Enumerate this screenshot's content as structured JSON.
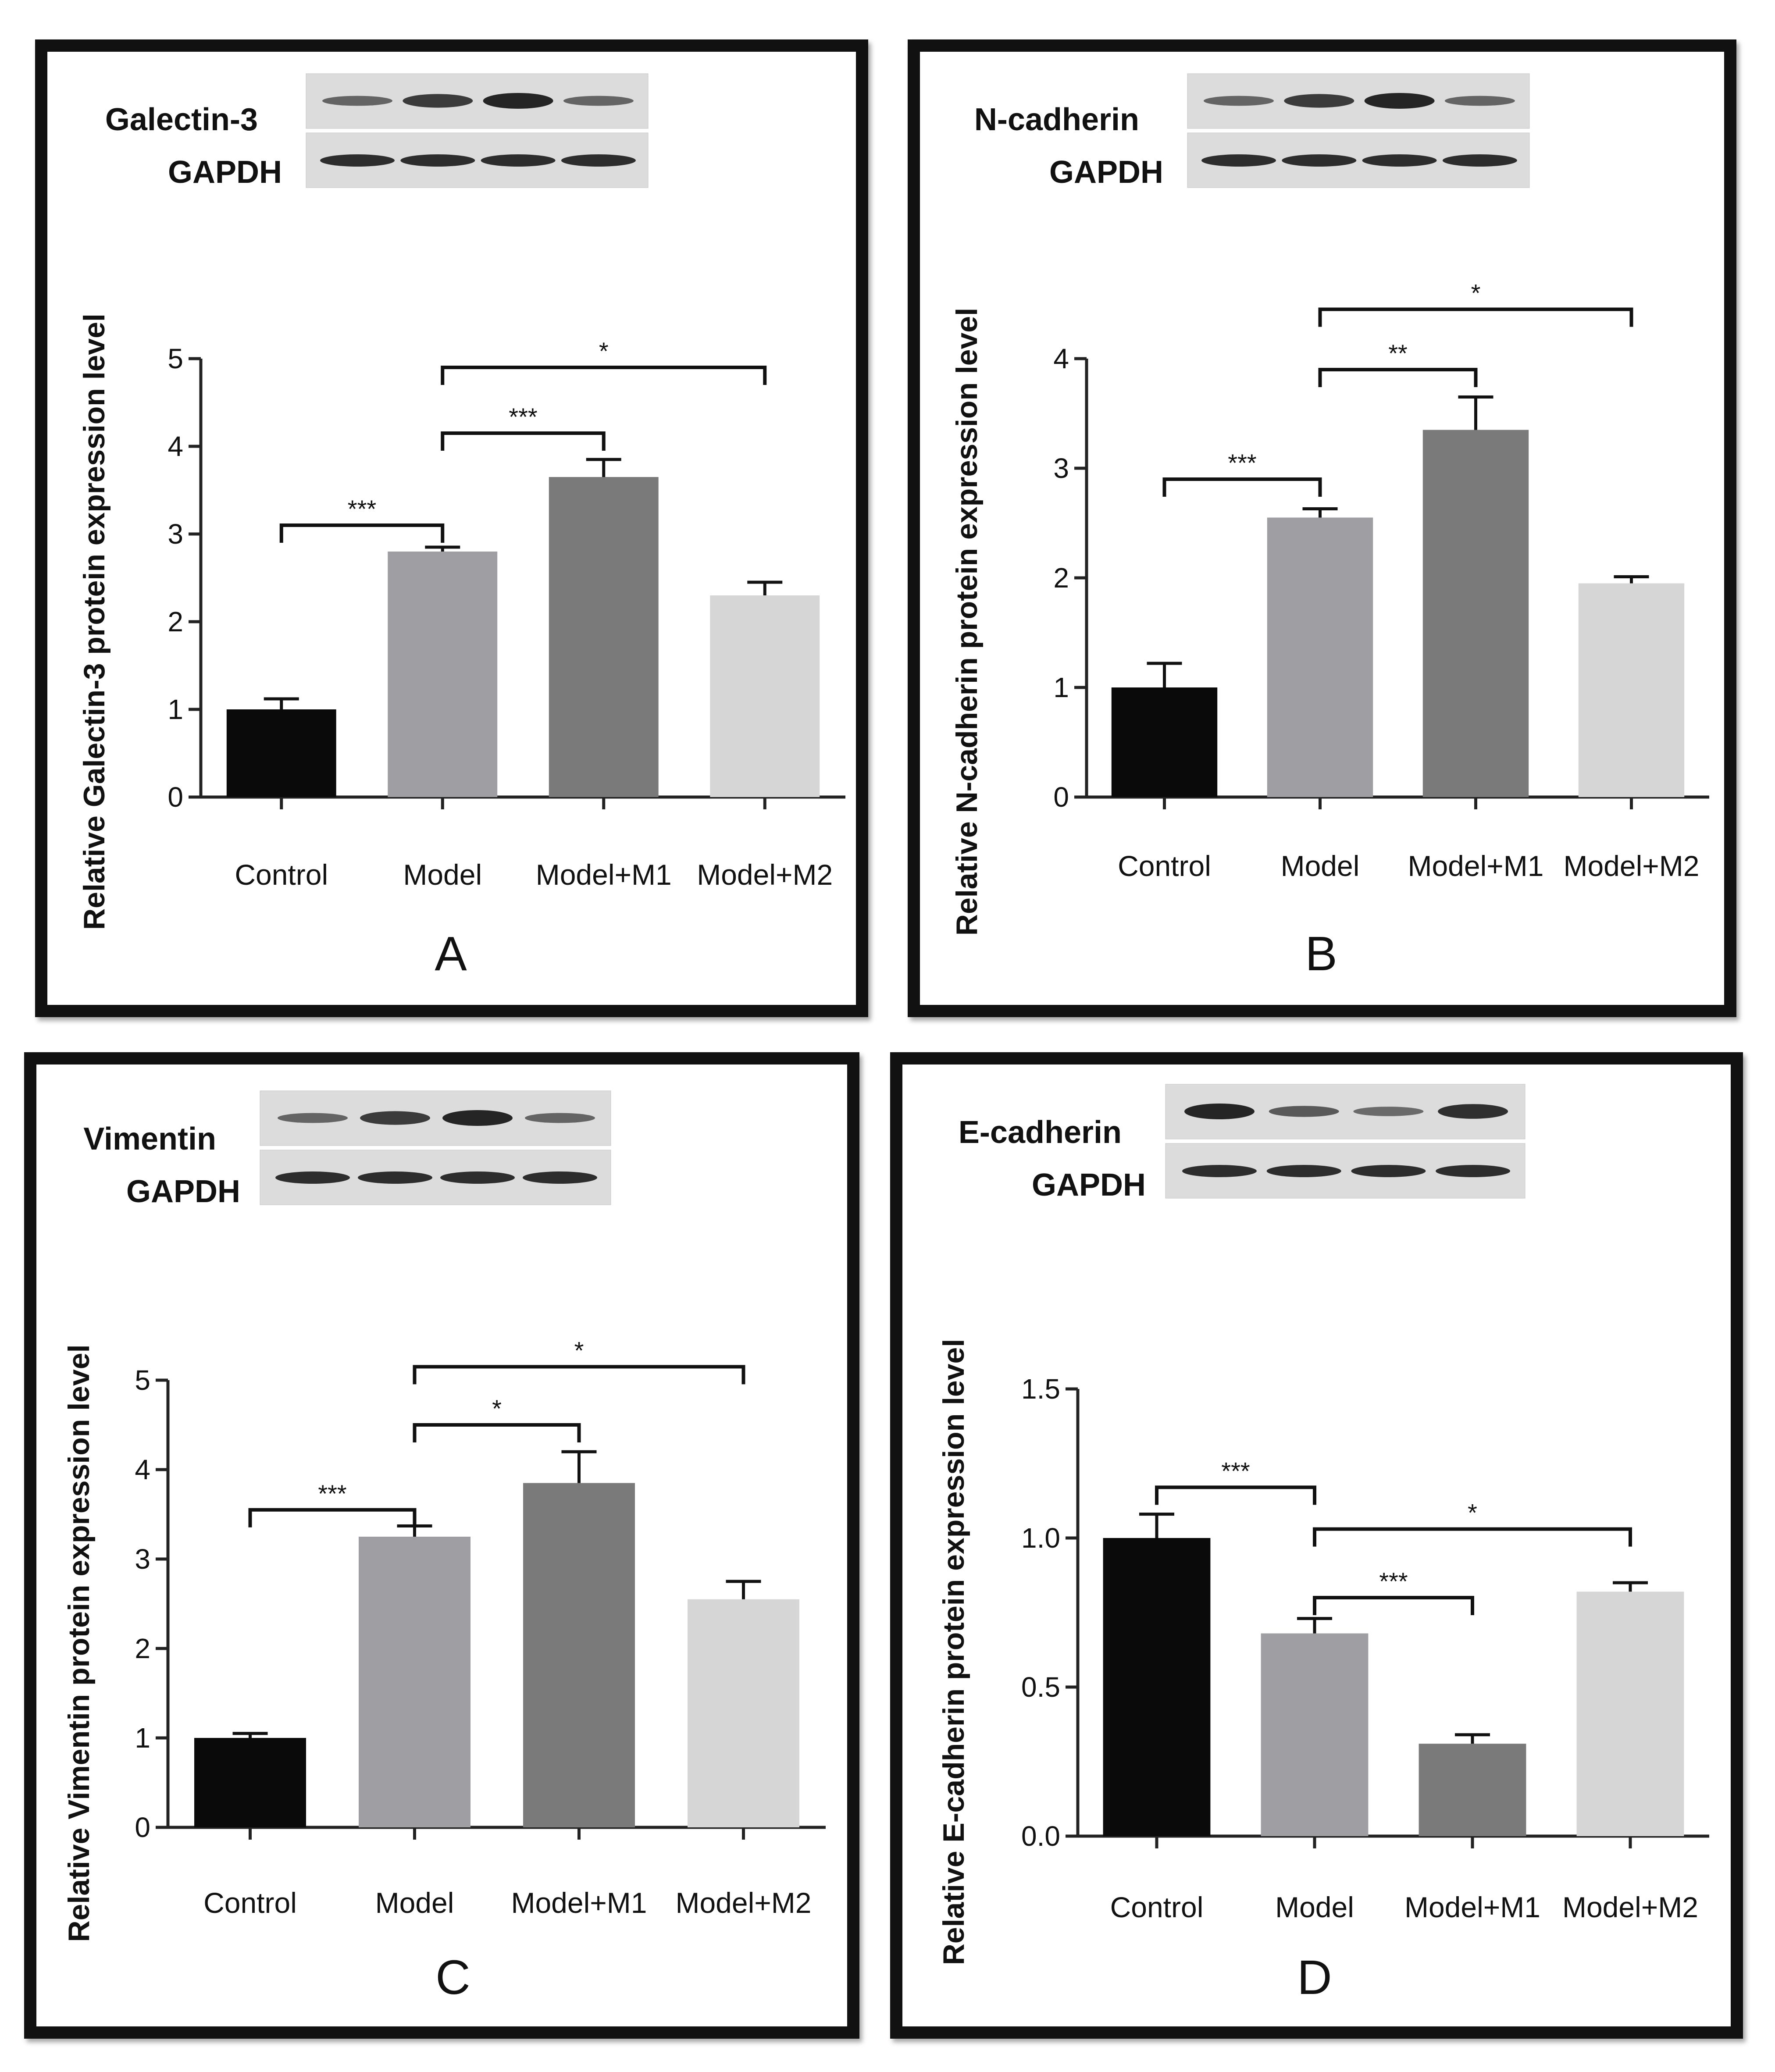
{
  "chart_data": [
    {
      "type": "bar",
      "panel_label": "A",
      "blot_labels": [
        "Galectin-3",
        "GAPDH"
      ],
      "categories": [
        "Control",
        "Model",
        "Model+M1",
        "Model+M2"
      ],
      "values": [
        1.0,
        2.8,
        3.65,
        2.3
      ],
      "errors": [
        0.12,
        0.05,
        0.2,
        0.15
      ],
      "ylabel": "Relative Galectin-3 protein expression level",
      "ylim": [
        0,
        5
      ],
      "yticks": [
        "0",
        "1",
        "2",
        "3",
        "4",
        "5"
      ],
      "significance": [
        {
          "from": 0,
          "to": 1,
          "label": "***",
          "level": 3.1
        },
        {
          "from": 1,
          "to": 2,
          "label": "***",
          "level": 4.15
        },
        {
          "from": 1,
          "to": 3,
          "label": "*",
          "level": 4.9
        }
      ],
      "bar_colors": [
        "#0a0a0a",
        "#9e9ea3",
        "#7a7a7a",
        "#d6d6d6"
      ]
    },
    {
      "type": "bar",
      "panel_label": "B",
      "blot_labels": [
        "N-cadherin",
        "GAPDH"
      ],
      "categories": [
        "Control",
        "Model",
        "Model+M1",
        "Model+M2"
      ],
      "values": [
        1.0,
        2.55,
        3.35,
        1.95
      ],
      "errors": [
        0.22,
        0.08,
        0.3,
        0.06
      ],
      "ylabel": "Relative N-cadherin protein expression level",
      "ylim": [
        0,
        4
      ],
      "yticks": [
        "0",
        "1",
        "2",
        "3",
        "4"
      ],
      "significance": [
        {
          "from": 0,
          "to": 1,
          "label": "***",
          "level": 2.9
        },
        {
          "from": 1,
          "to": 2,
          "label": "**",
          "level": 3.9
        },
        {
          "from": 1,
          "to": 3,
          "label": "*",
          "level": 4.45
        }
      ],
      "bar_colors": [
        "#0a0a0a",
        "#9e9ea3",
        "#7a7a7a",
        "#d6d6d6"
      ]
    },
    {
      "type": "bar",
      "panel_label": "C",
      "blot_labels": [
        "Vimentin",
        "GAPDH"
      ],
      "categories": [
        "Control",
        "Model",
        "Model+M1",
        "Model+M2"
      ],
      "values": [
        1.0,
        3.25,
        3.85,
        2.55
      ],
      "errors": [
        0.05,
        0.12,
        0.35,
        0.2
      ],
      "ylabel": "Relative Vimentin protein expression level",
      "ylim": [
        0,
        5
      ],
      "yticks": [
        "0",
        "1",
        "2",
        "3",
        "4",
        "5"
      ],
      "significance": [
        {
          "from": 0,
          "to": 1,
          "label": "***",
          "level": 3.55
        },
        {
          "from": 1,
          "to": 2,
          "label": "*",
          "level": 4.5
        },
        {
          "from": 1,
          "to": 3,
          "label": "*",
          "level": 5.15
        }
      ],
      "bar_colors": [
        "#0a0a0a",
        "#9e9ea3",
        "#7a7a7a",
        "#d6d6d6"
      ]
    },
    {
      "type": "bar",
      "panel_label": "D",
      "blot_labels": [
        "E-cadherin",
        "GAPDH"
      ],
      "categories": [
        "Control",
        "Model",
        "Model+M1",
        "Model+M2"
      ],
      "values": [
        1.0,
        0.68,
        0.31,
        0.82
      ],
      "errors": [
        0.08,
        0.05,
        0.03,
        0.03
      ],
      "ylabel": "Relative E-cadherin protein expression level",
      "ylim": [
        0,
        1.5
      ],
      "yticks": [
        "0.0",
        "0.5",
        "1.0",
        "1.5"
      ],
      "significance": [
        {
          "from": 0,
          "to": 1,
          "label": "***",
          "level": 1.17
        },
        {
          "from": 1,
          "to": 3,
          "label": "*",
          "level": 1.03
        },
        {
          "from": 1,
          "to": 2,
          "label": "***",
          "level": 0.8
        }
      ],
      "bar_colors": [
        "#0a0a0a",
        "#9e9ea3",
        "#7a7a7a",
        "#d6d6d6"
      ]
    }
  ]
}
